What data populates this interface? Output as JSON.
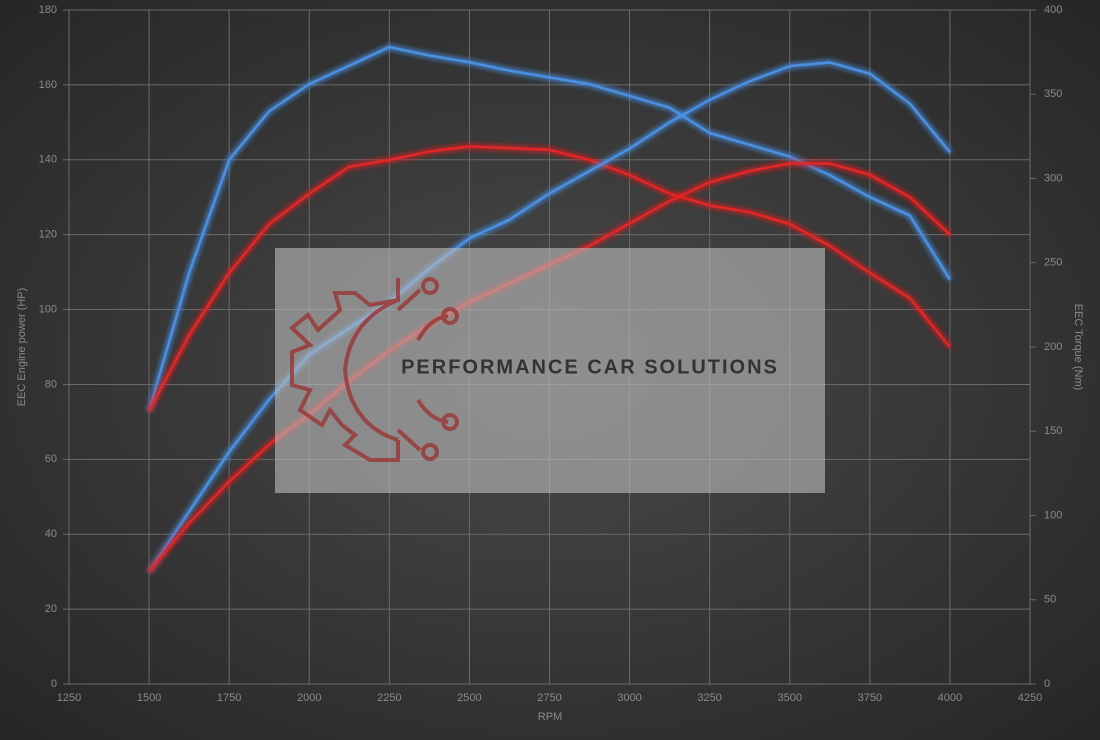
{
  "chart_data": {
    "type": "line",
    "y_label": "EEC Engine power (HP)",
    "y2_label": "EEC Torque (Nm)",
    "x_label": "RPM",
    "watermark": "PERFORMANCE CAR SOLUTIONS",
    "x": [
      1500,
      1625,
      1750,
      1875,
      2000,
      2125,
      2250,
      2375,
      2500,
      2625,
      2750,
      2875,
      3000,
      3125,
      3250,
      3375,
      3500,
      3625,
      3750,
      3875,
      4000
    ],
    "xlim": [
      1250,
      4250
    ],
    "xticks": [
      1250,
      1500,
      1750,
      2000,
      2250,
      2500,
      2750,
      3000,
      3250,
      3500,
      3750,
      4000,
      4250
    ],
    "ylim": [
      0,
      180
    ],
    "yticks": [
      0,
      20,
      40,
      60,
      80,
      100,
      120,
      140,
      160,
      180
    ],
    "y2lim": [
      0,
      400
    ],
    "y2ticks": [
      0,
      50,
      100,
      150,
      200,
      250,
      300,
      350,
      400
    ],
    "grid": true,
    "series": [
      {
        "color": "#4a90e2",
        "axis": "y2",
        "values": [
          162,
          244,
          311,
          340,
          356,
          367,
          378,
          373,
          369,
          364,
          360,
          356,
          349,
          342,
          327,
          320,
          313,
          302,
          289,
          278,
          240
        ]
      },
      {
        "color": "#e02828",
        "axis": "y2",
        "values": [
          162,
          207,
          244,
          273,
          291,
          307,
          311,
          316,
          319,
          318,
          317,
          311,
          302,
          291,
          284,
          280,
          273,
          260,
          244,
          229,
          200
        ]
      },
      {
        "color": "#4a90e2",
        "axis": "y",
        "values": [
          30,
          46,
          62,
          76,
          88,
          95,
          102,
          111,
          119,
          124,
          131,
          137,
          143,
          150,
          156,
          161,
          165,
          166,
          163,
          155,
          142
        ]
      },
      {
        "color": "#e02828",
        "axis": "y",
        "values": [
          30,
          43,
          54,
          64,
          72,
          81,
          89,
          96,
          102,
          107,
          112,
          117,
          123,
          129,
          134,
          137,
          139,
          139,
          136,
          130,
          120
        ]
      }
    ]
  }
}
